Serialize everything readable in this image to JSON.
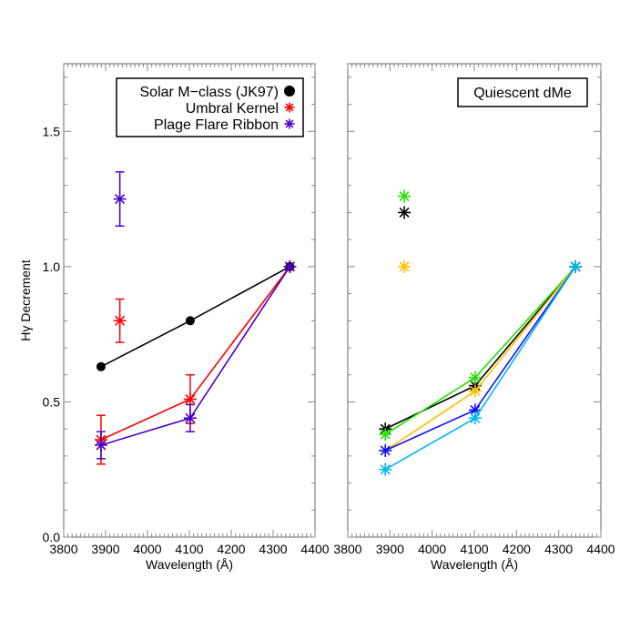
{
  "chart_data": [
    {
      "type": "line",
      "xlabel": "Wavelength (Å)",
      "ylabel": "Hγ Decrement",
      "xlim": [
        3800,
        4400
      ],
      "ylim": [
        0,
        1.75
      ],
      "xticks": [
        "3800",
        "3900",
        "4000",
        "4100",
        "4200",
        "4300",
        "4400"
      ],
      "yticks": [
        "0.0",
        "0.5",
        "1.0",
        "1.5"
      ],
      "legend_placement": "top-right",
      "legend": [
        "Solar M−class (JK97)",
        "Umbral Kernel",
        "Plage Flare Ribbon"
      ],
      "series": [
        {
          "name": "Solar M−class (JK97)",
          "color": "#000000",
          "marker": "circle",
          "x": [
            3889,
            4102,
            4340
          ],
          "y": [
            0.63,
            0.8,
            1.0
          ]
        },
        {
          "name": "Umbral Kernel",
          "color": "#ff0000",
          "marker": "asterisk",
          "x": [
            3889,
            4102,
            4340
          ],
          "y": [
            0.36,
            0.51,
            1.0
          ],
          "err_low": [
            0.27,
            0.42,
            null
          ],
          "err_high": [
            0.45,
            0.6,
            null
          ],
          "extra_point": {
            "x": 3934,
            "y": 0.8,
            "err_low": 0.72,
            "err_high": 0.88
          }
        },
        {
          "name": "Plage Flare Ribbon",
          "color": "#4b00c8",
          "marker": "asterisk",
          "x": [
            3889,
            4102,
            4340
          ],
          "y": [
            0.34,
            0.44,
            1.0
          ],
          "err_low": [
            0.29,
            0.39,
            null
          ],
          "err_high": [
            0.39,
            0.49,
            null
          ],
          "extra_point": {
            "x": 3934,
            "y": 1.25,
            "err_low": 1.15,
            "err_high": 1.35
          }
        }
      ]
    },
    {
      "type": "line",
      "title": "Quiescent dMe",
      "xlabel": "Wavelength (Å)",
      "xlim": [
        3800,
        4400
      ],
      "ylim": [
        0,
        1.75
      ],
      "xticks": [
        "3800",
        "3900",
        "4000",
        "4100",
        "4200",
        "4300",
        "4400"
      ],
      "series": [
        {
          "color": "#000000",
          "x": [
            3889,
            4102,
            4340
          ],
          "y": [
            0.4,
            0.56,
            1.0
          ],
          "extra_point": {
            "x": 3934,
            "y": 1.2
          }
        },
        {
          "color": "#22e000",
          "x": [
            3889,
            4102,
            4340
          ],
          "y": [
            0.38,
            0.59,
            1.0
          ],
          "extra_point": {
            "x": 3934,
            "y": 1.26
          }
        },
        {
          "color": "#ffc000",
          "x": [
            3889,
            4102,
            4340
          ],
          "y": [
            0.32,
            0.54,
            1.0
          ],
          "extra_point": {
            "x": 3934,
            "y": 1.0
          }
        },
        {
          "color": "#1010ff",
          "x": [
            3889,
            4102,
            4340
          ],
          "y": [
            0.32,
            0.47,
            1.0
          ]
        },
        {
          "color": "#00b8f0",
          "x": [
            3889,
            4102,
            4340
          ],
          "y": [
            0.25,
            0.44,
            1.0
          ]
        }
      ]
    }
  ]
}
